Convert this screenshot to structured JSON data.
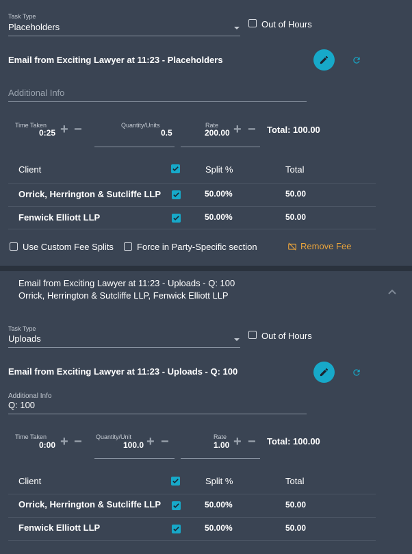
{
  "fee1": {
    "task_type_label": "Task Type",
    "task_type_value": "Placeholders",
    "out_of_hours_label": "Out of Hours",
    "description": "Email from Exciting Lawyer at 11:23 - Placeholders",
    "additional_info_placeholder": "Additional Info",
    "time_taken_label": "Time Taken",
    "time_taken_value": "0:25",
    "quantity_label": "Quantity/Units",
    "quantity_value": "0.5",
    "rate_label": "Rate",
    "rate_value": "200.00",
    "total": "Total: 100.00",
    "table_headers": {
      "client": "Client",
      "split": "Split %",
      "total": "Total"
    },
    "rows": [
      {
        "client": "Orrick, Herrington & Sutcliffe LLP",
        "split": "50.00%",
        "total": "50.00"
      },
      {
        "client": "Fenwick Elliott LLP",
        "split": "50.00%",
        "total": "50.00"
      }
    ],
    "custom_fee_splits_label": "Use Custom Fee Splits",
    "force_party_label": "Force in Party-Specific section",
    "remove_fee_label": "Remove Fee"
  },
  "fee2": {
    "header_line1": "Email from Exciting Lawyer at 11:23 - Uploads - Q: 100",
    "header_line2": "Orrick, Herrington & Sutcliffe LLP, Fenwick Elliott LLP",
    "task_type_label": "Task Type",
    "task_type_value": "Uploads",
    "out_of_hours_label": "Out of Hours",
    "description": "Email from Exciting Lawyer at 11:23 - Uploads - Q: 100",
    "additional_info_label": "Additional Info",
    "additional_info_value": "Q: 100",
    "time_taken_label": "Time Taken",
    "time_taken_value": "0:00",
    "quantity_label": "Quantity/Unit",
    "quantity_value": "100.0",
    "rate_label": "Rate",
    "rate_value": "1.00",
    "total": "Total: 100.00",
    "table_headers": {
      "client": "Client",
      "split": "Split %",
      "total": "Total"
    },
    "rows": [
      {
        "client": "Orrick, Herrington & Sutcliffe LLP",
        "split": "50.00%",
        "total": "50.00"
      },
      {
        "client": "Fenwick Elliott LLP",
        "split": "50.00%",
        "total": "50.00"
      }
    ]
  },
  "icons": {
    "edit": "pencil-icon",
    "refresh": "refresh-icon",
    "remove": "remove-fee-icon",
    "collapse": "chevron-up-icon",
    "plus": "+",
    "minus": "−"
  },
  "colors": {
    "accent": "#17a9c9",
    "warning": "#e6a23c",
    "background": "#3a4453"
  }
}
